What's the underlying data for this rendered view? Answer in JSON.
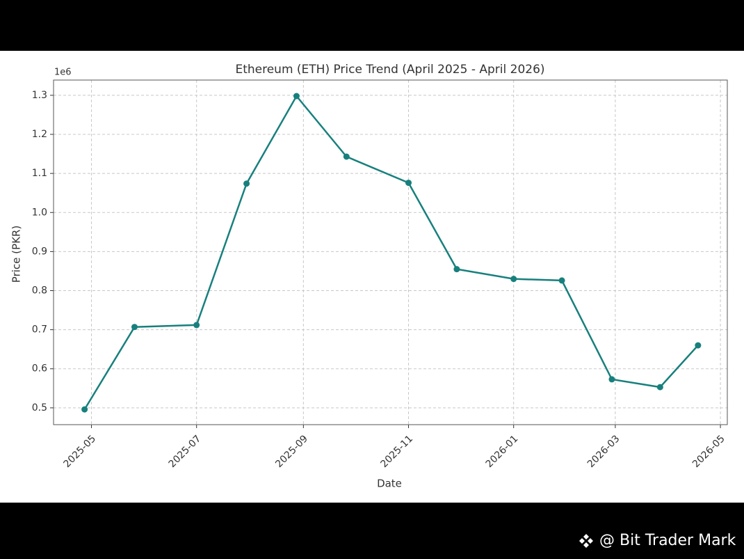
{
  "chart_data": {
    "type": "line",
    "title": "Ethereum (ETH) Price Trend (April 2025 - April 2026)",
    "x_label": "Date",
    "y_label": "Price (PKR)",
    "y_offset_label": "1e6",
    "x": [
      "2025-04-27",
      "2025-05-26",
      "2025-07-01",
      "2025-07-30",
      "2025-08-28",
      "2025-09-26",
      "2025-11-01",
      "2025-11-29",
      "2026-01-01",
      "2026-01-29",
      "2026-02-27",
      "2026-03-27",
      "2026-04-18"
    ],
    "series": [
      {
        "name": "Price (PKR)",
        "color": "#17807d",
        "values": [
          0.496,
          0.707,
          0.712,
          1.074,
          1.298,
          1.143,
          1.076,
          0.855,
          0.83,
          0.826,
          0.573,
          0.553,
          0.66
        ]
      }
    ],
    "xlim": [
      "2025-04-09",
      "2026-05-05"
    ],
    "xticks": [
      {
        "value": "2025-05-01",
        "label": "2025-05"
      },
      {
        "value": "2025-07-01",
        "label": "2025-07"
      },
      {
        "value": "2025-09-01",
        "label": "2025-09"
      },
      {
        "value": "2025-11-01",
        "label": "2025-11"
      },
      {
        "value": "2026-01-01",
        "label": "2026-01"
      },
      {
        "value": "2026-03-01",
        "label": "2026-03"
      },
      {
        "value": "2026-05-01",
        "label": "2026-05"
      }
    ],
    "ylim": [
      0.457,
      1.339
    ],
    "yticks": [
      0.5,
      0.6,
      0.7,
      0.8,
      0.9,
      {
        "value": 1,
        "label": "1.0"
      },
      1.1,
      1.2,
      1.3
    ],
    "grid": true
  },
  "watermark": "@ Bit Trader Mark"
}
